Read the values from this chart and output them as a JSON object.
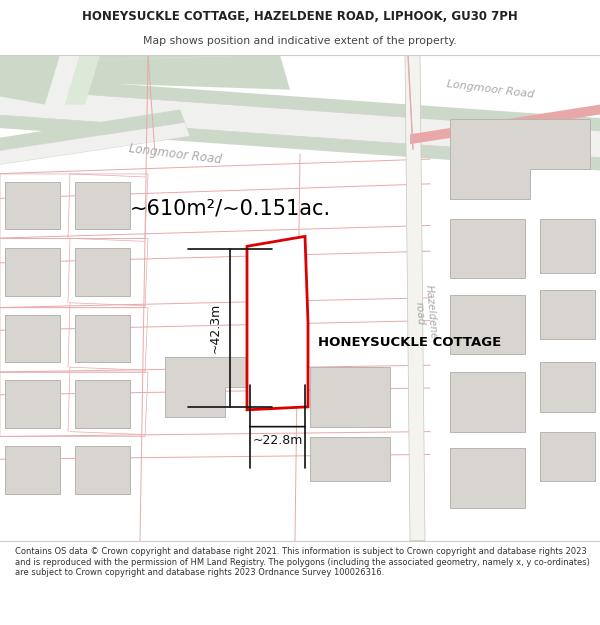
{
  "title": "HONEYSUCKLE COTTAGE, HAZELDENE ROAD, LIPHOOK, GU30 7PH",
  "subtitle": "Map shows position and indicative extent of the property.",
  "footer": "Contains OS data © Crown copyright and database right 2021. This information is subject to Crown copyright and database rights 2023 and is reproduced with the permission of HM Land Registry. The polygons (including the associated geometry, namely x, y co-ordinates) are subject to Crown copyright and database rights 2023 Ordnance Survey 100026316.",
  "area_label": "~610m²/~0.151ac.",
  "property_label": "HONEYSUCKLE COTTAGE",
  "dim_height": "~42.3m",
  "dim_width": "~22.8m",
  "map_bg": "#ffffff",
  "road_green1": "#ccd9c8",
  "road_green2": "#dce8d8",
  "road_white": "#f0f0ee",
  "building_fill": "#d8d4d0",
  "building_stroke": "#b8b4b0",
  "pink_road": "#e8a8a8",
  "grey_road": "#c8c4c0",
  "red_outline": "#dd0000",
  "dim_color": "#111111",
  "label_grey": "#aaaaaa",
  "title_color": "#222222",
  "text_color": "#444444"
}
